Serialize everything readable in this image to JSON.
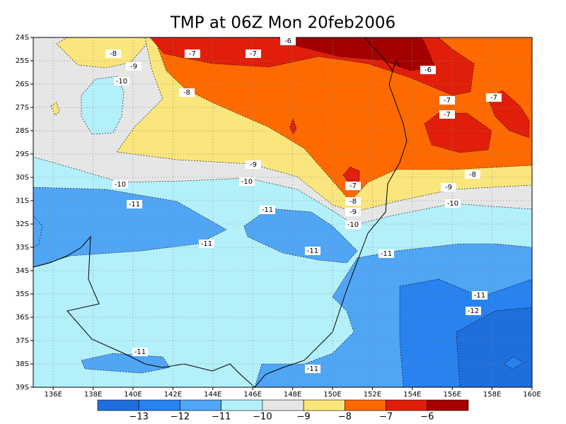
{
  "title": "TMP at 06Z Mon 20feb2006",
  "lat_labels": [
    "24S",
    "25S",
    "26S",
    "27S",
    "28S",
    "29S",
    "30S",
    "31S",
    "32S",
    "33S",
    "34S",
    "35S",
    "36S",
    "37S",
    "38S",
    "39S"
  ],
  "lon_labels": [
    "136E",
    "138E",
    "140E",
    "142E",
    "144E",
    "146E",
    "148E",
    "150E",
    "152E",
    "154E",
    "156E",
    "158E",
    "160E"
  ],
  "colorbar": {
    "colors": [
      "#1e6edc",
      "#2882f0",
      "#50a5f5",
      "#b4f0fa",
      "#e6e6e6",
      "#fae67c",
      "#ff6a00",
      "#e11e0a",
      "#a50000"
    ],
    "labels": [
      "−13",
      "−12",
      "−11",
      "−10",
      "−9",
      "−8",
      "−7",
      "−6"
    ]
  },
  "contour_labels": [
    "-8",
    "-7",
    "-7",
    "-6",
    "-6",
    "-9",
    "-10",
    "-8",
    "-7",
    "-7",
    "-7",
    "-9",
    "-10",
    "-10",
    "-8",
    "-11",
    "-7",
    "-8",
    "-9",
    "-10",
    "-11",
    "-9",
    "-10",
    "-11",
    "-11",
    "-11",
    "-11",
    "-12",
    "-11",
    "-11"
  ]
}
